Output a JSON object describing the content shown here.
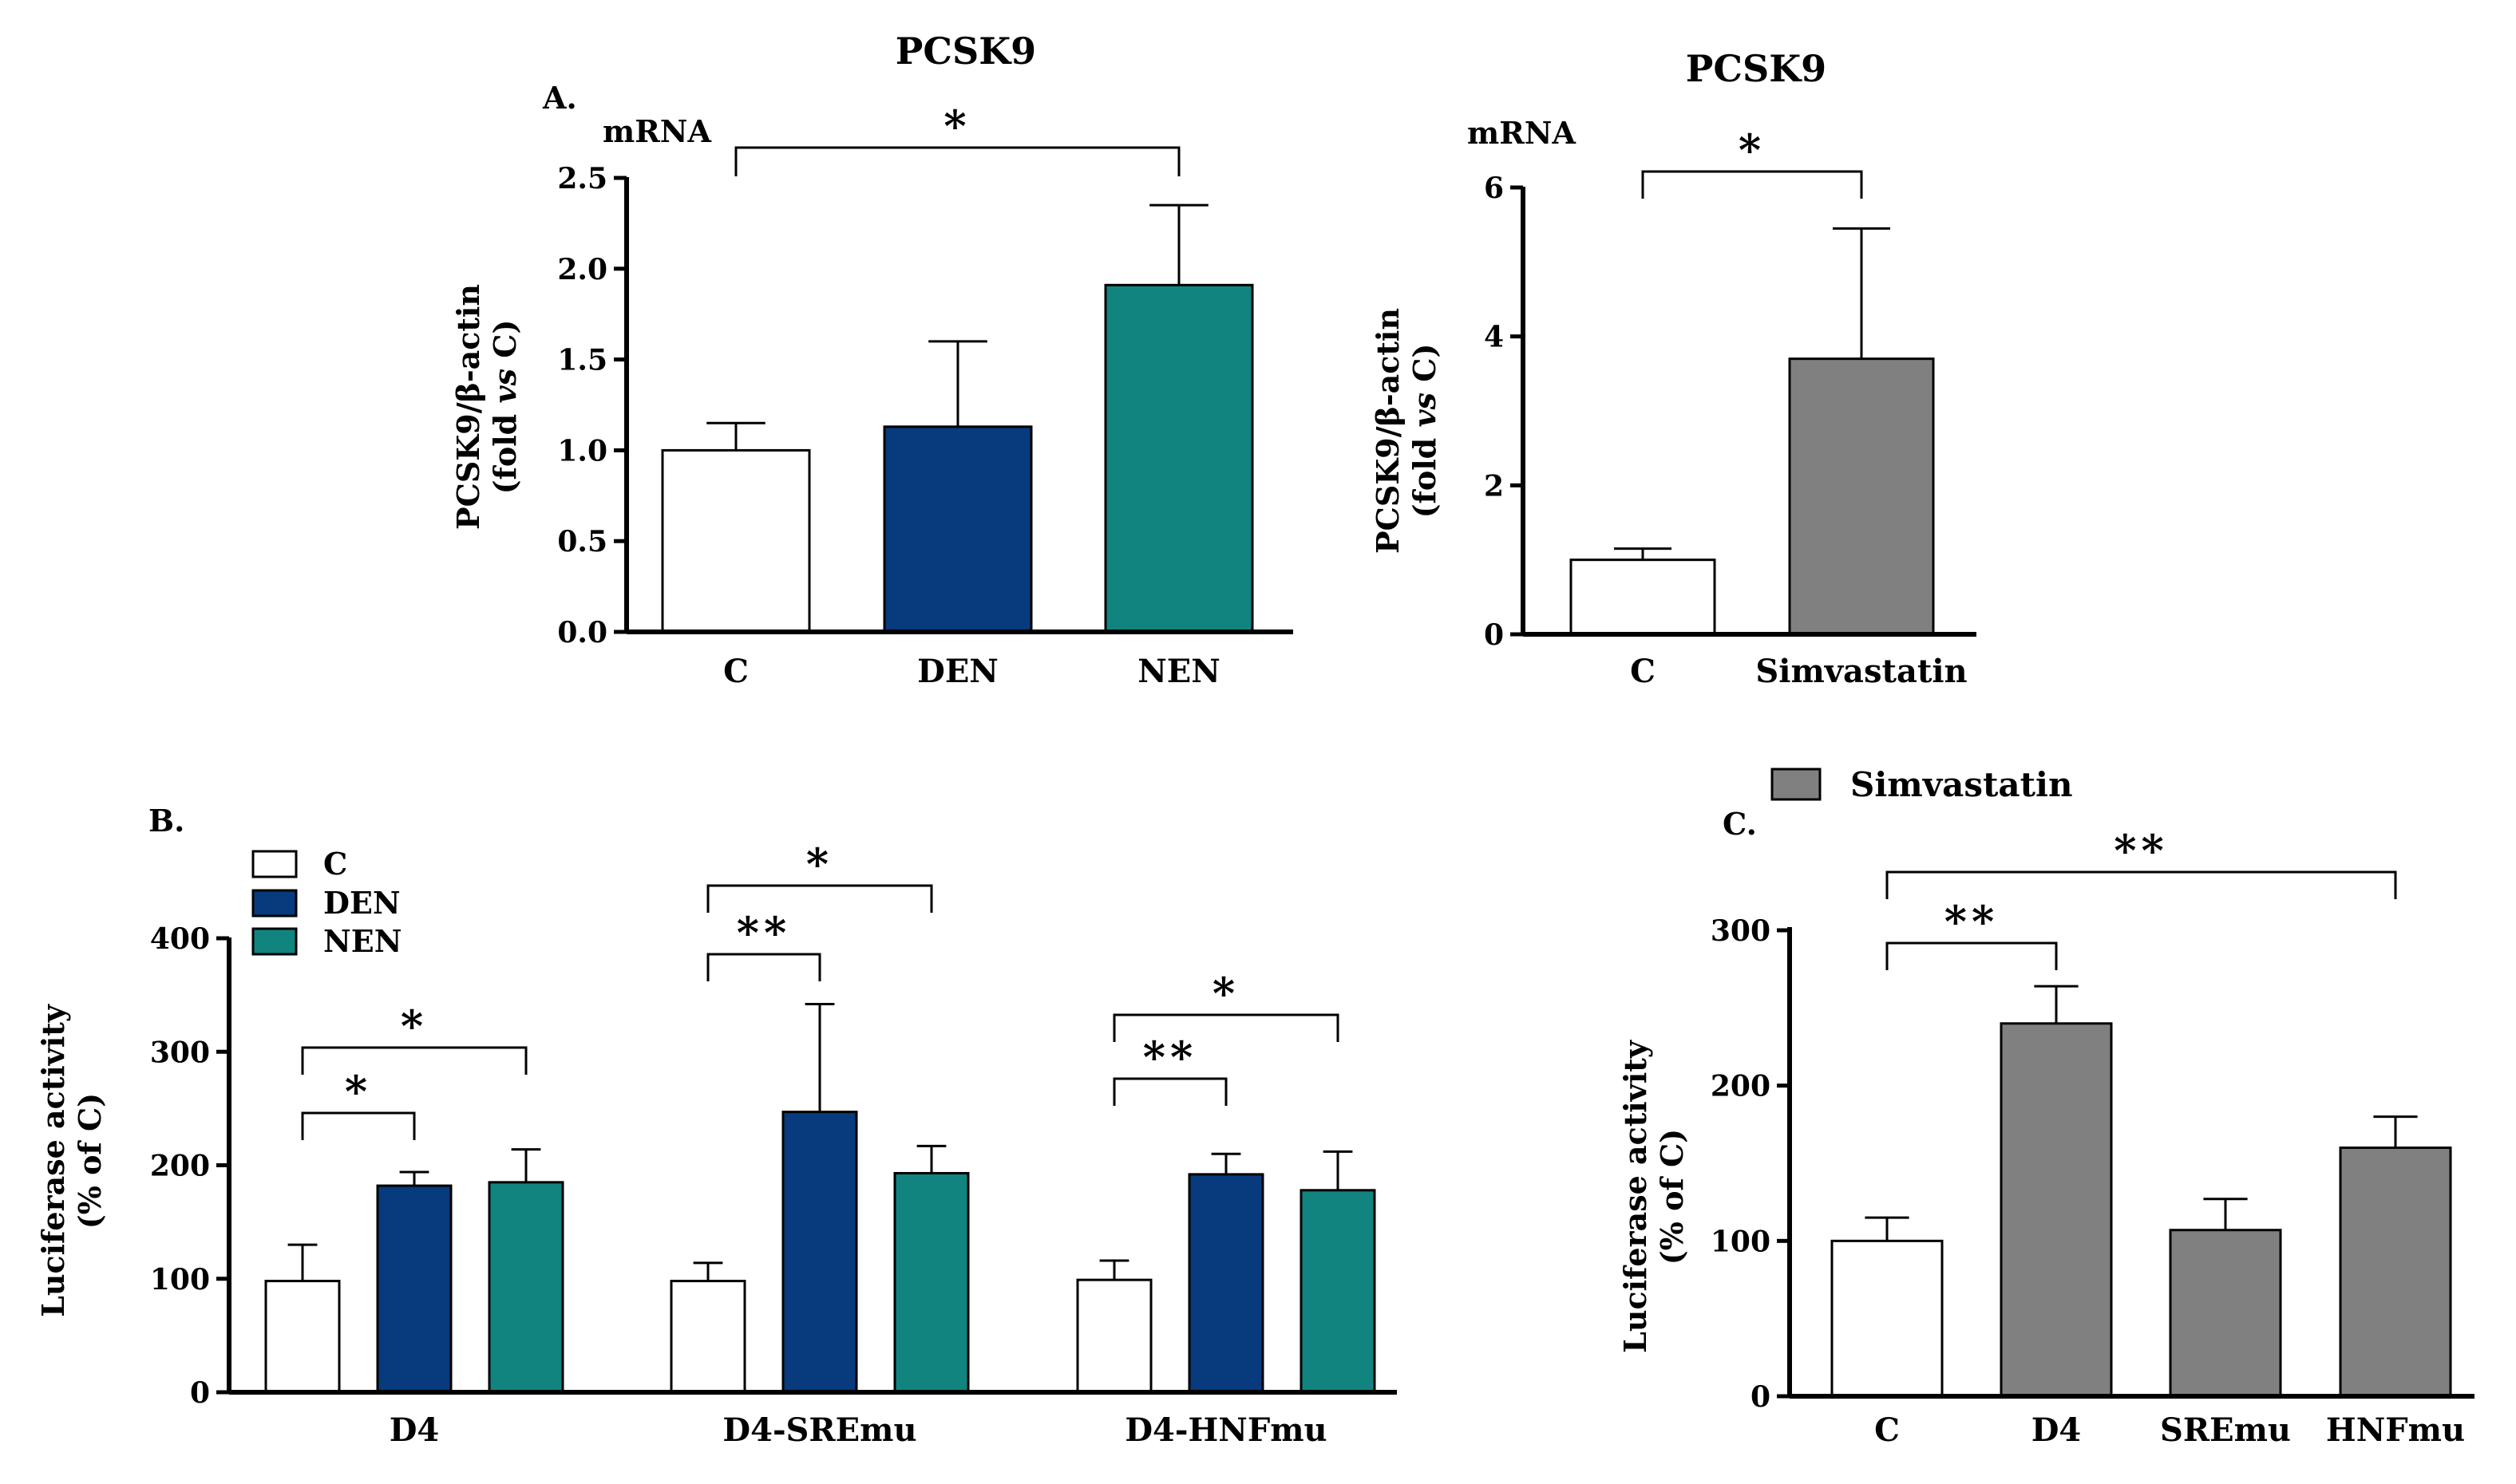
{
  "colors": {
    "control": "#ffffff",
    "den": "#073b7d",
    "nen": "#118480",
    "simvastatin": "#808080",
    "axis": "#000000"
  },
  "chart_data": [
    {
      "id": "A-left",
      "type": "bar",
      "panel_label": "A.",
      "title": "PCSK9",
      "subtitle": "mRNA",
      "ylabel_line1": "PCSK9/β-actin",
      "ylabel_line2_pre": "(fold ",
      "ylabel_line2_em": "vs",
      "ylabel_line2_post": " C)",
      "categories": [
        "C",
        "DEN",
        "NEN"
      ],
      "values": [
        1.0,
        1.13,
        1.91
      ],
      "errors": [
        0.15,
        0.47,
        0.44
      ],
      "colors": [
        "#ffffff",
        "#073b7d",
        "#118480"
      ],
      "ylim": [
        0,
        2.5
      ],
      "yticks": [
        0,
        0.5,
        1.0,
        1.5,
        2.0,
        2.5
      ],
      "ytick_labels": [
        "0.0",
        "0.5",
        "1.0",
        "1.5",
        "2.0",
        "2.5"
      ],
      "significance": [
        {
          "from": 0,
          "to": 2,
          "label": "*"
        }
      ]
    },
    {
      "id": "A-right",
      "type": "bar",
      "title": "PCSK9",
      "subtitle": "mRNA",
      "ylabel_line1": "PCSK9/β-actin",
      "ylabel_line2_pre": "(fold ",
      "ylabel_line2_em": "vs",
      "ylabel_line2_post": " C)",
      "categories": [
        "C",
        "Simvastatin"
      ],
      "values": [
        1.0,
        3.7
      ],
      "errors": [
        0.15,
        1.75
      ],
      "colors": [
        "#ffffff",
        "#808080"
      ],
      "ylim": [
        0,
        6
      ],
      "yticks": [
        0,
        2,
        4,
        6
      ],
      "ytick_labels": [
        "0",
        "2",
        "4",
        "6"
      ],
      "significance": [
        {
          "from": 0,
          "to": 1,
          "label": "*"
        }
      ]
    },
    {
      "id": "B",
      "type": "bar",
      "panel_label": "B.",
      "ylabel_line1": "Luciferase activity",
      "ylabel_line2": "(% of C)",
      "categories": [
        "D4",
        "D4-SREmu",
        "D4-HNFmu"
      ],
      "series": [
        {
          "name": "C",
          "values": [
            98,
            98,
            99
          ],
          "errors": [
            32,
            16,
            17
          ]
        },
        {
          "name": "DEN",
          "values": [
            182,
            247,
            192
          ],
          "errors": [
            12,
            95,
            18
          ]
        },
        {
          "name": "NEN",
          "values": [
            185,
            193,
            178
          ],
          "errors": [
            29,
            24,
            34
          ]
        }
      ],
      "ylim": [
        0,
        400
      ],
      "yticks": [
        0,
        100,
        200,
        300,
        400
      ],
      "ytick_labels": [
        "0",
        "100",
        "200",
        "300",
        "400"
      ],
      "legend_position": "top-left",
      "significance": [
        {
          "group": 0,
          "from": 0,
          "to": 1,
          "label": "*"
        },
        {
          "group": 0,
          "from": 0,
          "to": 2,
          "label": "*"
        },
        {
          "group": 1,
          "from": 0,
          "to": 1,
          "label": "**"
        },
        {
          "group": 1,
          "from": 0,
          "to": 2,
          "label": "*"
        },
        {
          "group": 2,
          "from": 0,
          "to": 1,
          "label": "**"
        },
        {
          "group": 2,
          "from": 0,
          "to": 2,
          "label": "*"
        }
      ]
    },
    {
      "id": "C",
      "type": "bar",
      "panel_label": "C.",
      "legend_label": "Simvastatin",
      "ylabel_line1": "Luciferase activity",
      "ylabel_line2": "(% of C)",
      "categories": [
        "C",
        "D4",
        "SREmu",
        "HNFmu"
      ],
      "values": [
        100,
        240,
        107,
        160
      ],
      "errors": [
        15,
        24,
        20,
        20
      ],
      "colors": [
        "#ffffff",
        "#808080",
        "#808080",
        "#808080"
      ],
      "ylim": [
        0,
        300
      ],
      "yticks": [
        0,
        100,
        200,
        300
      ],
      "ytick_labels": [
        "0",
        "100",
        "200",
        "300"
      ],
      "significance": [
        {
          "from": 0,
          "to": 1,
          "label": "**"
        },
        {
          "from": 0,
          "to": 3,
          "label": "**"
        }
      ]
    }
  ]
}
